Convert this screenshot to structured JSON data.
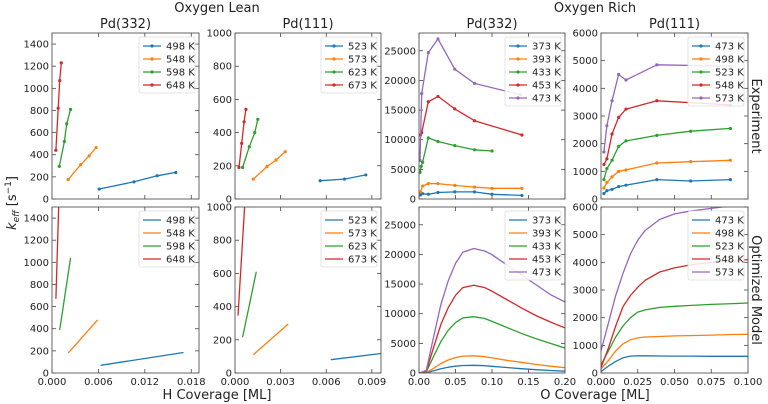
{
  "figure": {
    "group_titles": [
      "Oxygen Lean",
      "Oxygen Rich"
    ],
    "row_labels": [
      "Experiment",
      "Optimized Model"
    ],
    "ylabel_main": "k",
    "ylabel_sub": "eff",
    "ylabel_unit": " [s",
    "ylabel_exp": "−1",
    "ylabel_close": "]",
    "xlabels": [
      "H Coverage [ML]",
      "O Coverage [ML]"
    ]
  },
  "colors": [
    "#1f77b4",
    "#ff7f0e",
    "#2ca02c",
    "#d62728",
    "#9467bd"
  ],
  "chart_data": [
    {
      "type": "line",
      "row": "Experiment",
      "col": 0,
      "title": "Pd(332)",
      "markers": true,
      "xlim": [
        0,
        0.019
      ],
      "ylim": [
        0,
        1500
      ],
      "xticks": [
        0,
        0.006,
        0.012,
        0.018
      ],
      "xtick_labels": [
        "0.000",
        "0.006",
        "0.012",
        "0.018"
      ],
      "show_xtick_labels": false,
      "yticks": [
        0,
        200,
        400,
        600,
        800,
        1000,
        1200,
        1400
      ],
      "ytick_labels": [
        "0",
        "200",
        "400",
        "600",
        "800",
        "1000",
        "1200",
        "1400"
      ],
      "series": [
        {
          "name": "498 K",
          "x": [
            0.0061,
            0.0106,
            0.0136,
            0.016
          ],
          "y": [
            90,
            155,
            210,
            240
          ]
        },
        {
          "name": "548 K",
          "x": [
            0.0021,
            0.0037,
            0.0048,
            0.0057
          ],
          "y": [
            175,
            310,
            390,
            465
          ]
        },
        {
          "name": "598 K",
          "x": [
            0.00094,
            0.0016,
            0.0019,
            0.0024
          ],
          "y": [
            295,
            520,
            680,
            810
          ]
        },
        {
          "name": "648 K",
          "x": [
            0.0005,
            0.0008,
            0.001,
            0.0012
          ],
          "y": [
            440,
            820,
            1070,
            1230
          ]
        }
      ]
    },
    {
      "type": "line",
      "row": "Experiment",
      "col": 1,
      "title": "Pd(111)",
      "markers": true,
      "xlim": [
        0,
        0.0096
      ],
      "ylim": [
        0,
        1000
      ],
      "xticks": [
        0,
        0.003,
        0.006,
        0.009
      ],
      "xtick_labels": [
        "0.000",
        "0.003",
        "0.006",
        "0.009"
      ],
      "show_xtick_labels": false,
      "yticks": [
        0,
        200,
        400,
        600,
        800,
        1000
      ],
      "ytick_labels": [
        "0",
        "200",
        "400",
        "600",
        "800",
        "1000"
      ],
      "series": [
        {
          "name": "523 K",
          "x": [
            0.0056,
            0.0072,
            0.0086
          ],
          "y": [
            110,
            120,
            145
          ]
        },
        {
          "name": "573 K",
          "x": [
            0.0012,
            0.0021,
            0.0027,
            0.0033
          ],
          "y": [
            120,
            195,
            235,
            285
          ]
        },
        {
          "name": "623 K",
          "x": [
            0.0005,
            0.00094,
            0.0013,
            0.0015
          ],
          "y": [
            190,
            315,
            400,
            480
          ]
        },
        {
          "name": "673 K",
          "x": [
            0.00026,
            0.00044,
            0.0006,
            0.00072
          ],
          "y": [
            190,
            335,
            465,
            540
          ]
        }
      ]
    },
    {
      "type": "line",
      "row": "Experiment",
      "col": 2,
      "title": "Pd(332)",
      "markers": true,
      "xlim": [
        0,
        0.2
      ],
      "ylim": [
        0,
        28000
      ],
      "xticks": [
        0,
        0.05,
        0.1,
        0.15,
        0.2
      ],
      "xtick_labels": [
        "0.00",
        "0.05",
        "0.10",
        "0.15",
        "0.20"
      ],
      "show_xtick_labels": false,
      "yticks": [
        0,
        5000,
        10000,
        15000,
        20000,
        25000
      ],
      "ytick_labels": [
        "0",
        "5000",
        "10000",
        "15000",
        "20000",
        "25000"
      ],
      "series": [
        {
          "name": "373 K",
          "x": [
            0.002,
            0.005,
            0.0128,
            0.026,
            0.049,
            0.076,
            0.1,
            0.141
          ],
          "y": [
            700,
            900,
            800,
            1100,
            1200,
            1200,
            800,
            600
          ]
        },
        {
          "name": "393 K",
          "x": [
            0.002,
            0.005,
            0.0128,
            0.026,
            0.049,
            0.076,
            0.1,
            0.141
          ],
          "y": [
            1200,
            2200,
            2600,
            2600,
            2300,
            2000,
            1800,
            1800
          ]
        },
        {
          "name": "433 K",
          "x": [
            0.0014,
            0.003,
            0.005,
            0.0128,
            0.026,
            0.049,
            0.076,
            0.1
          ],
          "y": [
            4500,
            5500,
            6200,
            10300,
            9700,
            9000,
            8300,
            8100
          ]
        },
        {
          "name": "453 K",
          "x": [
            0.002,
            0.0037,
            0.0128,
            0.026,
            0.049,
            0.076,
            0.141
          ],
          "y": [
            10800,
            11200,
            16400,
            17300,
            15200,
            13200,
            10800
          ]
        },
        {
          "name": "473 K",
          "x": [
            0.0014,
            0.0037,
            0.0128,
            0.026,
            0.049,
            0.076,
            0.139
          ],
          "y": [
            6500,
            17800,
            24700,
            27000,
            21900,
            19500,
            17600
          ]
        }
      ]
    },
    {
      "type": "line",
      "row": "Experiment",
      "col": 3,
      "title": "Pd(111)",
      "markers": true,
      "xlim": [
        0,
        0.1
      ],
      "ylim": [
        0,
        6000
      ],
      "xticks": [
        0,
        0.025,
        0.05,
        0.075,
        0.1
      ],
      "xtick_labels": [
        "0.000",
        "0.025",
        "0.050",
        "0.075",
        "0.100"
      ],
      "show_xtick_labels": false,
      "yticks": [
        0,
        1000,
        2000,
        3000,
        4000,
        5000,
        6000
      ],
      "ytick_labels": [
        "0",
        "1000",
        "2000",
        "3000",
        "4000",
        "5000",
        "6000"
      ],
      "series": [
        {
          "name": "473 K",
          "x": [
            0.002,
            0.004,
            0.0075,
            0.012,
            0.017,
            0.038,
            0.061,
            0.088
          ],
          "y": [
            200,
            300,
            350,
            450,
            500,
            700,
            650,
            700
          ]
        },
        {
          "name": "498 K",
          "x": [
            0.002,
            0.004,
            0.0075,
            0.012,
            0.017,
            0.038,
            0.061,
            0.088
          ],
          "y": [
            400,
            600,
            800,
            1000,
            1050,
            1300,
            1350,
            1400
          ]
        },
        {
          "name": "523 K",
          "x": [
            0.002,
            0.004,
            0.0075,
            0.012,
            0.017,
            0.038,
            0.061,
            0.088
          ],
          "y": [
            700,
            1100,
            1400,
            1900,
            2100,
            2300,
            2450,
            2550
          ]
        },
        {
          "name": "548 K",
          "x": [
            0.002,
            0.004,
            0.0075,
            0.012,
            0.017,
            0.038,
            0.088
          ],
          "y": [
            1250,
            1450,
            2350,
            2950,
            3250,
            3550,
            3400
          ]
        },
        {
          "name": "573 K",
          "x": [
            0.002,
            0.004,
            0.0075,
            0.012,
            0.017,
            0.038,
            0.088
          ],
          "y": [
            1700,
            2650,
            3550,
            4500,
            4300,
            4850,
            4800
          ]
        }
      ]
    },
    {
      "type": "line",
      "row": "Optimized Model",
      "col": 0,
      "title": "",
      "markers": false,
      "xlim": [
        0,
        0.019
      ],
      "ylim": [
        0,
        1500
      ],
      "xticks": [
        0,
        0.006,
        0.012,
        0.018
      ],
      "xtick_labels": [
        "0.000",
        "0.006",
        "0.012",
        "0.018"
      ],
      "show_xtick_labels": true,
      "yticks": [
        0,
        200,
        400,
        600,
        800,
        1000,
        1200,
        1400
      ],
      "ytick_labels": [
        "0",
        "200",
        "400",
        "600",
        "800",
        "1000",
        "1200",
        "1400"
      ],
      "series": [
        {
          "name": "498 K",
          "x": [
            0.0063,
            0.017
          ],
          "y": [
            70,
            185
          ]
        },
        {
          "name": "548 K",
          "x": [
            0.0021,
            0.0059
          ],
          "y": [
            180,
            480
          ]
        },
        {
          "name": "598 K",
          "x": [
            0.001,
            0.0024
          ],
          "y": [
            390,
            1040
          ]
        },
        {
          "name": "648 K",
          "x": [
            0.0005,
            0.0009
          ],
          "y": [
            670,
            1600
          ]
        }
      ]
    },
    {
      "type": "line",
      "row": "Optimized Model",
      "col": 1,
      "title": "",
      "markers": false,
      "xlim": [
        0,
        0.0096
      ],
      "ylim": [
        0,
        1000
      ],
      "xticks": [
        0,
        0.003,
        0.006,
        0.009
      ],
      "xtick_labels": [
        "0.000",
        "0.003",
        "0.006",
        "0.009"
      ],
      "show_xtick_labels": true,
      "yticks": [
        0,
        200,
        400,
        600,
        800,
        1000
      ],
      "ytick_labels": [
        "0",
        "200",
        "400",
        "600",
        "800",
        "1000"
      ],
      "series": [
        {
          "name": "523 K",
          "x": [
            0.0063,
            0.0098
          ],
          "y": [
            80,
            120
          ]
        },
        {
          "name": "573 K",
          "x": [
            0.0012,
            0.0035
          ],
          "y": [
            110,
            295
          ]
        },
        {
          "name": "623 K",
          "x": [
            0.0005,
            0.0014
          ],
          "y": [
            215,
            610
          ]
        },
        {
          "name": "673 K",
          "x": [
            0.0002,
            0.0007
          ],
          "y": [
            345,
            1100
          ]
        }
      ]
    },
    {
      "type": "line",
      "row": "Optimized Model",
      "col": 2,
      "title": "",
      "markers": false,
      "xlim": [
        0,
        0.2
      ],
      "ylim": [
        0,
        28000
      ],
      "xticks": [
        0,
        0.05,
        0.1,
        0.15,
        0.2
      ],
      "xtick_labels": [
        "0.00",
        "0.05",
        "0.10",
        "0.15",
        "0.20"
      ],
      "show_xtick_labels": true,
      "yticks": [
        0,
        5000,
        10000,
        15000,
        20000,
        25000
      ],
      "ytick_labels": [
        "0",
        "5000",
        "10000",
        "15000",
        "20000",
        "25000"
      ],
      "series": [
        {
          "name": "373 K",
          "x": [
            0,
            0.01,
            0.02,
            0.03,
            0.04,
            0.05,
            0.06,
            0.075,
            0.09,
            0.1,
            0.12,
            0.14,
            0.16,
            0.18,
            0.2
          ],
          "y": [
            0,
            30,
            370,
            720,
            980,
            1150,
            1260,
            1300,
            1230,
            1130,
            920,
            730,
            560,
            420,
            300
          ]
        },
        {
          "name": "393 K",
          "x": [
            0,
            0.01,
            0.02,
            0.03,
            0.04,
            0.05,
            0.06,
            0.075,
            0.09,
            0.1,
            0.12,
            0.14,
            0.16,
            0.18,
            0.2
          ],
          "y": [
            0,
            60,
            800,
            1600,
            2200,
            2600,
            2850,
            2900,
            2750,
            2550,
            2150,
            1800,
            1450,
            1150,
            900
          ]
        },
        {
          "name": "433 K",
          "x": [
            0,
            0.01,
            0.02,
            0.03,
            0.04,
            0.05,
            0.06,
            0.075,
            0.09,
            0.1,
            0.12,
            0.14,
            0.16,
            0.18,
            0.2
          ],
          "y": [
            0,
            200,
            2800,
            5300,
            7200,
            8500,
            9300,
            9500,
            9200,
            8700,
            7700,
            6700,
            5800,
            5000,
            4200
          ]
        },
        {
          "name": "453 K",
          "x": [
            0,
            0.01,
            0.02,
            0.03,
            0.04,
            0.05,
            0.06,
            0.075,
            0.09,
            0.1,
            0.12,
            0.14,
            0.16,
            0.18,
            0.2
          ],
          "y": [
            0,
            300,
            4300,
            8200,
            11000,
            13100,
            14400,
            14800,
            14400,
            13800,
            12400,
            11000,
            9700,
            8600,
            7600
          ]
        },
        {
          "name": "473 K",
          "x": [
            0,
            0.01,
            0.02,
            0.03,
            0.04,
            0.05,
            0.06,
            0.075,
            0.09,
            0.1,
            0.12,
            0.14,
            0.16,
            0.18,
            0.2
          ],
          "y": [
            0,
            420,
            6090,
            11550,
            15540,
            18480,
            20370,
            21000,
            20580,
            19950,
            18270,
            16590,
            14910,
            13230,
            11970
          ]
        }
      ]
    },
    {
      "type": "line",
      "row": "Optimized Model",
      "col": 3,
      "title": "",
      "markers": false,
      "xlim": [
        0,
        0.1
      ],
      "ylim": [
        0,
        6000
      ],
      "xticks": [
        0,
        0.025,
        0.05,
        0.075,
        0.1
      ],
      "xtick_labels": [
        "0.000",
        "0.025",
        "0.050",
        "0.075",
        "0.100"
      ],
      "show_xtick_labels": true,
      "yticks": [
        0,
        1000,
        2000,
        3000,
        4000,
        5000,
        6000
      ],
      "ytick_labels": [
        "0",
        "1000",
        "2000",
        "3000",
        "4000",
        "5000",
        "6000"
      ],
      "series": [
        {
          "name": "473 K",
          "x": [
            0,
            0.005,
            0.01,
            0.015,
            0.02,
            0.025,
            0.03,
            0.04,
            0.05,
            0.06,
            0.075,
            0.09,
            0.1
          ],
          "y": [
            50,
            250,
            420,
            550,
            610,
            620,
            620,
            615,
            610,
            610,
            605,
            605,
            605
          ]
        },
        {
          "name": "498 K",
          "x": [
            0,
            0.005,
            0.01,
            0.015,
            0.02,
            0.025,
            0.03,
            0.04,
            0.05,
            0.06,
            0.075,
            0.09,
            0.1
          ],
          "y": [
            150,
            450,
            800,
            1050,
            1200,
            1270,
            1300,
            1320,
            1340,
            1350,
            1370,
            1390,
            1400
          ]
        },
        {
          "name": "523 K",
          "x": [
            0,
            0.005,
            0.01,
            0.015,
            0.02,
            0.025,
            0.03,
            0.04,
            0.05,
            0.06,
            0.075,
            0.09,
            0.1
          ],
          "y": [
            300,
            800,
            1300,
            1700,
            2000,
            2200,
            2280,
            2370,
            2410,
            2440,
            2480,
            2510,
            2530
          ]
        },
        {
          "name": "548 K",
          "x": [
            0,
            0.005,
            0.01,
            0.015,
            0.02,
            0.025,
            0.03,
            0.04,
            0.05,
            0.06,
            0.075,
            0.09,
            0.1
          ],
          "y": [
            200,
            900,
            1700,
            2400,
            2800,
            3100,
            3350,
            3650,
            3800,
            3900,
            4000,
            4050,
            4100
          ]
        },
        {
          "name": "573 K",
          "x": [
            0,
            0.005,
            0.01,
            0.015,
            0.02,
            0.025,
            0.03,
            0.04,
            0.05,
            0.06,
            0.075,
            0.09,
            0.1
          ],
          "y": [
            800,
            1800,
            2800,
            3600,
            4300,
            4800,
            5150,
            5550,
            5750,
            5850,
            5950,
            6050,
            6100
          ]
        }
      ]
    }
  ]
}
